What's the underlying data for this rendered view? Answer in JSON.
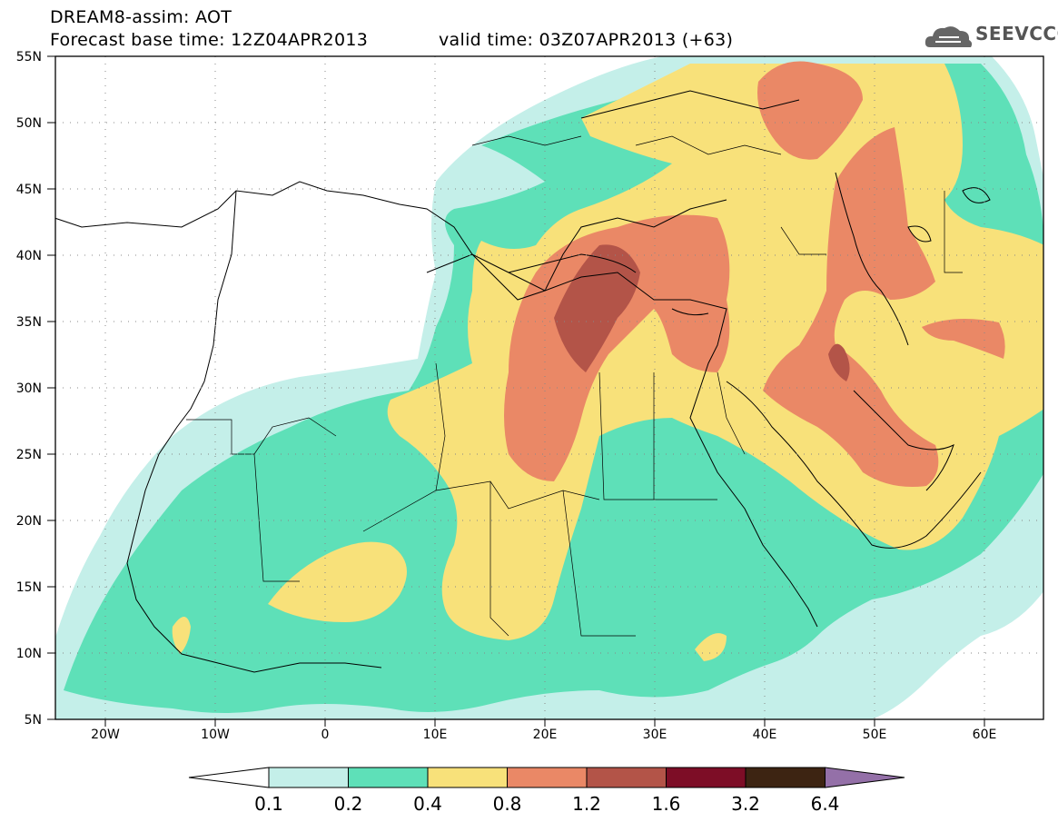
{
  "header": {
    "line1": "DREAM8-assim: AOT",
    "line2": "Forecast base time: 12Z04APR2013",
    "valid": "valid time: 03Z07APR2013 (+63)",
    "logo_text": "SEEVCCC",
    "logo_icon": "cloud-icon"
  },
  "axes": {
    "lat_labels": [
      "55N",
      "50N",
      "45N",
      "40N",
      "35N",
      "30N",
      "25N",
      "20N",
      "15N",
      "10N",
      "5N"
    ],
    "lon_labels": [
      "20W",
      "10W",
      "0",
      "10E",
      "20E",
      "30E",
      "40E",
      "50E",
      "60E"
    ]
  },
  "colorbar": {
    "labels": [
      "0.1",
      "0.2",
      "0.4",
      "0.8",
      "1.2",
      "1.6",
      "3.2",
      "6.4"
    ],
    "colors": [
      "#ffffff",
      "#c4efe9",
      "#5ee0b8",
      "#f8e17a",
      "#ea8866",
      "#b35448",
      "#7d0d26",
      "#3d2412",
      "#9470a8"
    ]
  },
  "colors": {
    "c01": "#c4efe9",
    "c02": "#5ee0b8",
    "c04": "#f8e17a",
    "c08": "#ea8866",
    "c12": "#b35448"
  }
}
